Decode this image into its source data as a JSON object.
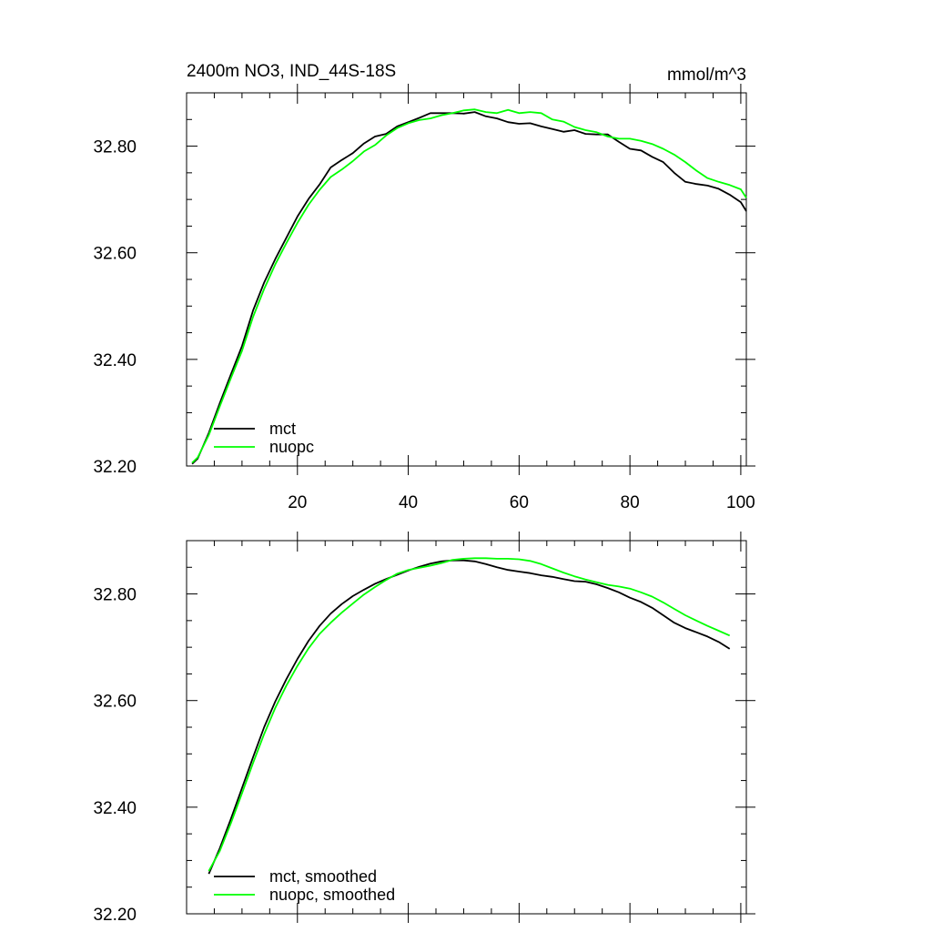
{
  "chart_data": [
    {
      "type": "line",
      "title": "2400m NO3, IND_44S-18S",
      "units": "mmol/m^3",
      "xlabel": "",
      "ylabel": "",
      "xlim": [
        0,
        101
      ],
      "ylim": [
        32.2,
        32.9
      ],
      "xticks": [
        20,
        40,
        60,
        80,
        100
      ],
      "xtick_labels": [
        "20",
        "40",
        "60",
        "80",
        "100"
      ],
      "yticks": [
        32.2,
        32.4,
        32.6,
        32.8
      ],
      "ytick_labels": [
        "32.20",
        "32.40",
        "32.60",
        "32.80"
      ],
      "legend_position": "bottom-left",
      "series": [
        {
          "name": "mct",
          "color": "#000000",
          "x": [
            1,
            2,
            4,
            6,
            8,
            10,
            12,
            14,
            16,
            18,
            20,
            22,
            24,
            26,
            28,
            30,
            32,
            34,
            36,
            38,
            40,
            42,
            44,
            46,
            48,
            50,
            52,
            54,
            56,
            58,
            60,
            62,
            64,
            66,
            68,
            70,
            72,
            74,
            76,
            78,
            80,
            82,
            84,
            86,
            88,
            90,
            92,
            94,
            96,
            98,
            100,
            101
          ],
          "y": [
            32.204,
            32.214,
            32.262,
            32.318,
            32.372,
            32.425,
            32.492,
            32.544,
            32.588,
            32.628,
            32.668,
            32.701,
            32.728,
            32.76,
            32.774,
            32.787,
            32.805,
            32.818,
            32.823,
            32.837,
            32.845,
            32.853,
            32.862,
            32.862,
            32.862,
            32.861,
            32.864,
            32.856,
            32.852,
            32.845,
            32.842,
            32.843,
            32.837,
            32.832,
            32.827,
            32.83,
            32.823,
            32.822,
            32.822,
            32.808,
            32.795,
            32.792,
            32.78,
            32.77,
            32.75,
            32.733,
            32.729,
            32.726,
            32.72,
            32.709,
            32.695,
            32.678
          ]
        },
        {
          "name": "nuopc",
          "color": "#00ff00",
          "x": [
            1,
            2,
            4,
            6,
            8,
            10,
            12,
            14,
            16,
            18,
            20,
            22,
            24,
            26,
            28,
            30,
            32,
            34,
            36,
            38,
            40,
            42,
            44,
            46,
            48,
            50,
            52,
            54,
            56,
            58,
            60,
            62,
            64,
            66,
            68,
            70,
            72,
            74,
            76,
            78,
            80,
            82,
            84,
            86,
            88,
            90,
            92,
            94,
            96,
            98,
            100,
            101
          ],
          "y": [
            32.206,
            32.216,
            32.258,
            32.312,
            32.365,
            32.416,
            32.48,
            32.532,
            32.578,
            32.618,
            32.656,
            32.69,
            32.718,
            32.742,
            32.756,
            32.772,
            32.79,
            32.802,
            32.82,
            32.834,
            32.843,
            32.849,
            32.852,
            32.858,
            32.862,
            32.867,
            32.869,
            32.864,
            32.862,
            32.868,
            32.862,
            32.864,
            32.862,
            32.85,
            32.846,
            32.836,
            32.83,
            32.826,
            32.818,
            32.814,
            32.814,
            32.81,
            32.804,
            32.795,
            32.784,
            32.77,
            32.754,
            32.74,
            32.733,
            32.727,
            32.719,
            32.703
          ]
        }
      ]
    },
    {
      "type": "line",
      "title": "",
      "xlabel": "",
      "ylabel": "",
      "xlim": [
        0,
        101
      ],
      "ylim": [
        32.2,
        32.9
      ],
      "xticks": [
        20,
        40,
        60,
        80,
        100
      ],
      "xtick_labels": [],
      "yticks": [
        32.2,
        32.4,
        32.6,
        32.8
      ],
      "ytick_labels": [
        "32.20",
        "32.40",
        "32.60",
        "32.80"
      ],
      "legend_position": "bottom-left",
      "series": [
        {
          "name": "mct, smoothed",
          "color": "#000000",
          "x": [
            4,
            6,
            8,
            10,
            12,
            14,
            16,
            18,
            20,
            22,
            24,
            26,
            28,
            30,
            32,
            34,
            36,
            38,
            40,
            42,
            44,
            46,
            48,
            50,
            52,
            54,
            56,
            58,
            60,
            62,
            64,
            66,
            68,
            70,
            72,
            74,
            76,
            78,
            80,
            82,
            84,
            86,
            88,
            90,
            92,
            94,
            96,
            98
          ],
          "y": [
            32.275,
            32.323,
            32.378,
            32.436,
            32.494,
            32.55,
            32.598,
            32.64,
            32.678,
            32.712,
            32.74,
            32.763,
            32.781,
            32.796,
            32.808,
            32.819,
            32.828,
            32.836,
            32.844,
            32.851,
            32.857,
            32.861,
            32.863,
            32.863,
            32.861,
            32.856,
            32.85,
            32.845,
            32.842,
            32.839,
            32.835,
            32.832,
            32.828,
            32.824,
            32.823,
            32.818,
            32.811,
            32.803,
            32.793,
            32.785,
            32.774,
            32.76,
            32.746,
            32.736,
            32.728,
            32.72,
            32.71,
            32.697
          ]
        },
        {
          "name": "nuopc, smoothed",
          "color": "#00ff00",
          "x": [
            4,
            6,
            8,
            10,
            12,
            14,
            16,
            18,
            20,
            22,
            24,
            26,
            28,
            30,
            32,
            34,
            36,
            38,
            40,
            42,
            44,
            46,
            48,
            50,
            52,
            54,
            56,
            58,
            60,
            62,
            64,
            66,
            68,
            70,
            72,
            74,
            76,
            78,
            80,
            82,
            84,
            86,
            88,
            90,
            92,
            94,
            96,
            98
          ],
          "y": [
            32.28,
            32.318,
            32.37,
            32.426,
            32.483,
            32.537,
            32.586,
            32.628,
            32.665,
            32.698,
            32.725,
            32.746,
            32.765,
            32.782,
            32.799,
            32.813,
            32.826,
            32.838,
            32.845,
            32.849,
            32.853,
            32.858,
            32.864,
            32.866,
            32.867,
            32.867,
            32.866,
            32.866,
            32.865,
            32.862,
            32.856,
            32.848,
            32.84,
            32.833,
            32.827,
            32.822,
            32.817,
            32.814,
            32.81,
            32.803,
            32.795,
            32.784,
            32.772,
            32.76,
            32.75,
            32.74,
            32.731,
            32.722
          ]
        }
      ]
    }
  ]
}
